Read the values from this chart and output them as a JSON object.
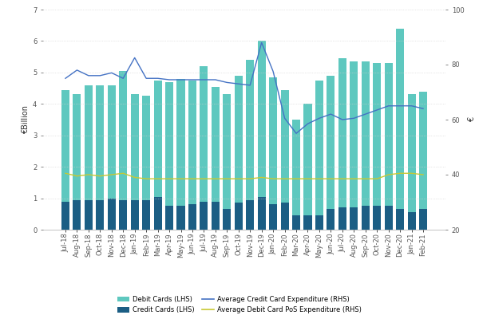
{
  "labels": [
    "Jul-18",
    "Aug-18",
    "Sep-18",
    "Oct-18",
    "Nov-18",
    "Dec-18",
    "Jan-19",
    "Feb-19",
    "Mar-19",
    "Apr-19",
    "May-19",
    "Jun-19",
    "Jul-19",
    "Aug-19",
    "Sep-19",
    "Oct-19",
    "Nov-19",
    "Dec-19",
    "Jan-20",
    "Feb-20",
    "Mar-20",
    "Apr-20",
    "May-20",
    "Jun-20",
    "Jul-20",
    "Aug-20",
    "Sep-20",
    "Oct-20",
    "Nov-20",
    "Dec-20",
    "Jan-21",
    "Feb-21"
  ],
  "debit_cards": [
    3.55,
    3.35,
    3.65,
    3.65,
    3.6,
    4.1,
    3.35,
    3.3,
    3.7,
    3.95,
    4.05,
    3.95,
    4.3,
    3.65,
    3.65,
    4.05,
    4.45,
    4.95,
    4.05,
    3.6,
    3.05,
    3.55,
    4.3,
    4.25,
    4.75,
    4.65,
    4.6,
    4.55,
    4.55,
    5.75,
    3.75,
    3.75
  ],
  "credit_cards": [
    0.9,
    0.95,
    0.95,
    0.95,
    1.0,
    0.95,
    0.95,
    0.95,
    1.05,
    0.75,
    0.75,
    0.8,
    0.9,
    0.9,
    0.65,
    0.85,
    0.95,
    1.05,
    0.8,
    0.85,
    0.45,
    0.45,
    0.45,
    0.65,
    0.7,
    0.7,
    0.75,
    0.75,
    0.75,
    0.65,
    0.55,
    0.65
  ],
  "avg_credit_card": [
    75.0,
    78.0,
    76.0,
    76.0,
    77.0,
    75.0,
    82.5,
    75.0,
    75.0,
    74.5,
    74.5,
    74.5,
    74.5,
    74.5,
    73.5,
    73.0,
    72.5,
    88.0,
    77.5,
    60.5,
    55.0,
    58.5,
    60.5,
    62.0,
    60.0,
    60.5,
    62.0,
    63.5,
    65.0,
    65.0,
    65.0,
    64.0
  ],
  "avg_debit_card": [
    40.5,
    39.5,
    40.0,
    39.5,
    40.0,
    40.5,
    39.0,
    38.5,
    38.5,
    38.5,
    38.5,
    38.5,
    38.5,
    38.5,
    38.5,
    38.5,
    38.5,
    39.0,
    38.5,
    38.5,
    38.5,
    38.5,
    38.5,
    38.5,
    38.5,
    38.5,
    38.5,
    38.5,
    40.0,
    40.5,
    40.5,
    40.0
  ],
  "debit_color": "#5ec8bf",
  "credit_color": "#1b5e84",
  "avg_credit_color": "#4472c4",
  "avg_debit_color": "#c8c832",
  "ylabel_left": "€Billion",
  "ylabel_right": "€",
  "ylim_left": [
    0,
    7
  ],
  "ylim_right": [
    20,
    100
  ],
  "yticks_left": [
    0,
    1,
    2,
    3,
    4,
    5,
    6,
    7
  ],
  "yticks_right": [
    20,
    40,
    60,
    80,
    100
  ],
  "legend_labels": [
    "Debit Cards (LHS)",
    "Credit Cards (LHS)",
    "Average Credit Card Expenditure (RHS)",
    "Average Debit Card PoS Expenditure (RHS)"
  ],
  "background_color": "#ffffff",
  "grid_color": "#d0d0d0",
  "title_fontsize": 7,
  "tick_fontsize": 6,
  "legend_fontsize": 6
}
